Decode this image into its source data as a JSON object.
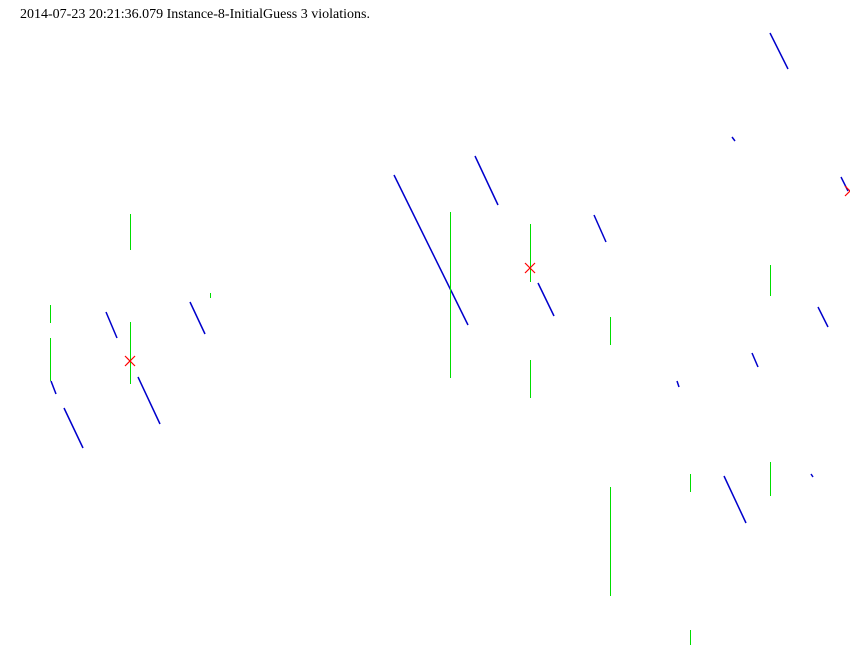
{
  "header": {
    "status_text": "2014-07-23 20:21:36.079 Instance-8-InitialGuess 3 violations."
  },
  "colors": {
    "background": "#ffffff",
    "blue_segment": "#0000cc",
    "green_segment": "#00dd00",
    "violation_marker": "#ff0000",
    "text": "#000000"
  },
  "legend": {
    "violation_marker": "x-marker"
  }
}
